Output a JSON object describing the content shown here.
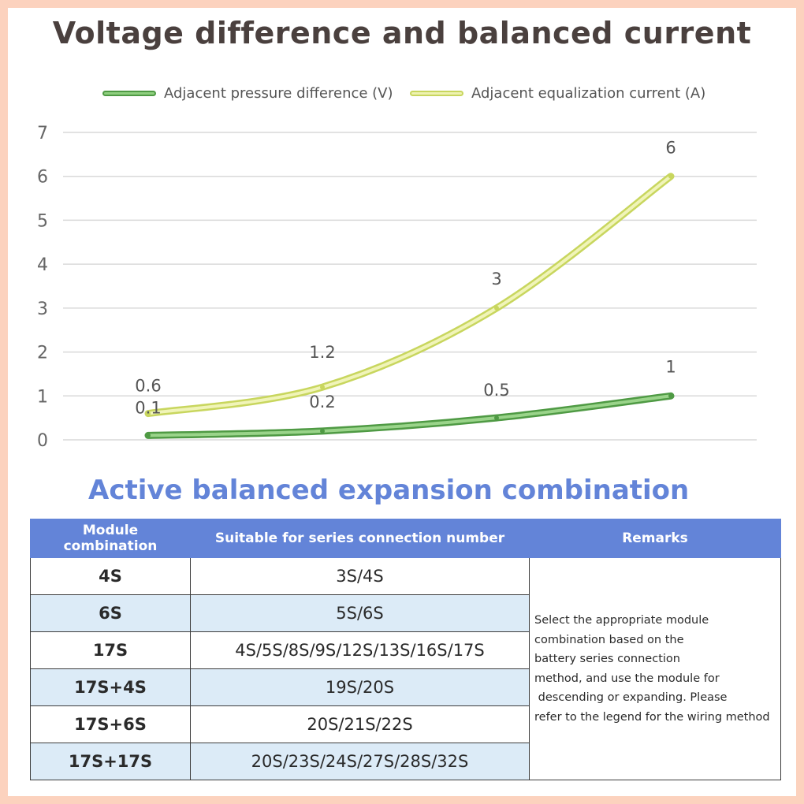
{
  "title": "Voltage difference and balanced current",
  "legend": [
    {
      "label": "Adjacent pressure difference (V)",
      "color": "#6aaf5c"
    },
    {
      "label": "Adjacent equalization current (A)",
      "color": "#d9e67f"
    }
  ],
  "chart_data": {
    "type": "line",
    "x": [
      1,
      2,
      3,
      4
    ],
    "ylim": [
      0,
      7
    ],
    "yticks": [
      "0",
      "1",
      "2",
      "3",
      "4",
      "5",
      "6",
      "7"
    ],
    "grid": true,
    "legend_position": "top",
    "series": [
      {
        "name": "Adjacent pressure difference (V)",
        "values": [
          0.1,
          0.2,
          0.5,
          1
        ],
        "labels": [
          "0.1",
          "0.2",
          "0.5",
          "1"
        ],
        "color": "#6aaf5c"
      },
      {
        "name": "Adjacent equalization current (A)",
        "values": [
          0.6,
          1.2,
          3,
          6
        ],
        "labels": [
          "0.6",
          "1.2",
          "3",
          "6"
        ],
        "color": "#d9e67f"
      }
    ]
  },
  "subtitle": "Active balanced expansion combination",
  "table": {
    "headers": [
      "Module combination",
      "Suitable for series connection number",
      "Remarks"
    ],
    "rows": [
      {
        "module": "4S",
        "series": "3S/4S"
      },
      {
        "module": "6S",
        "series": "5S/6S"
      },
      {
        "module": "17S",
        "series": "4S/5S/8S/9S/12S/13S/16S/17S"
      },
      {
        "module": "17S+4S",
        "series": "19S/20S"
      },
      {
        "module": "17S+6S",
        "series": "20S/21S/22S"
      },
      {
        "module": "17S+17S",
        "series": "20S/23S/24S/27S/28S/32S"
      }
    ],
    "remarks": [
      "Select the appropriate module",
      "combination based on the",
      "battery series connection",
      "method, and use the module for",
      " descending or expanding. Please",
      "refer to the legend for the wiring method"
    ]
  },
  "colors": {
    "accent": "#6384d8",
    "frame": "#fcd2be",
    "alt_row": "#dcebf7"
  }
}
